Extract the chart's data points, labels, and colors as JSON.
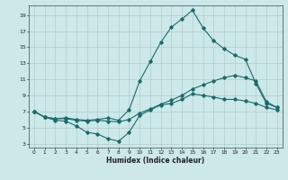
{
  "xlabel": "Humidex (Indice chaleur)",
  "bg_color": "#cce8e8",
  "grid_color": "#b0cccc",
  "line_color": "#1a6b6b",
  "xlim": [
    -0.5,
    23.5
  ],
  "ylim": [
    2.5,
    20.2
  ],
  "xticks": [
    0,
    1,
    2,
    3,
    4,
    5,
    6,
    7,
    8,
    9,
    10,
    11,
    12,
    13,
    14,
    15,
    16,
    17,
    18,
    19,
    20,
    21,
    22,
    23
  ],
  "yticks": [
    3,
    5,
    7,
    9,
    11,
    13,
    15,
    17,
    19
  ],
  "line_dip_x": [
    0,
    1,
    2,
    3,
    4,
    5,
    6,
    7,
    8,
    9,
    10,
    11,
    12,
    13,
    14,
    15,
    16,
    17,
    18,
    19,
    20,
    21,
    22,
    23
  ],
  "line_dip_y": [
    7.0,
    6.3,
    5.9,
    5.8,
    5.2,
    4.4,
    4.2,
    3.6,
    3.3,
    4.4,
    6.5,
    7.2,
    7.8,
    8.0,
    8.5,
    9.2,
    9.0,
    8.8,
    8.5,
    8.5,
    8.3,
    8.0,
    7.5,
    7.2
  ],
  "line_mid_x": [
    0,
    1,
    2,
    3,
    4,
    5,
    6,
    7,
    8,
    9,
    10,
    11,
    12,
    13,
    14,
    15,
    16,
    17,
    18,
    19,
    20,
    21,
    22,
    23
  ],
  "line_mid_y": [
    7.0,
    6.3,
    6.1,
    6.1,
    5.9,
    5.8,
    5.9,
    5.8,
    5.7,
    6.0,
    6.8,
    7.3,
    7.9,
    8.4,
    9.0,
    9.8,
    10.3,
    10.8,
    11.2,
    11.5,
    11.2,
    10.8,
    8.2,
    7.5
  ],
  "line_top_x": [
    0,
    1,
    2,
    3,
    4,
    5,
    6,
    7,
    8,
    9,
    10,
    11,
    12,
    13,
    14,
    15,
    16,
    17,
    18,
    19,
    20,
    21,
    22,
    23
  ],
  "line_top_y": [
    7.0,
    6.3,
    6.1,
    6.2,
    6.0,
    5.9,
    6.0,
    6.2,
    5.9,
    7.2,
    10.8,
    13.2,
    15.6,
    17.5,
    18.5,
    19.6,
    17.4,
    15.8,
    14.8,
    14.0,
    13.5,
    10.5,
    8.0,
    7.5
  ]
}
